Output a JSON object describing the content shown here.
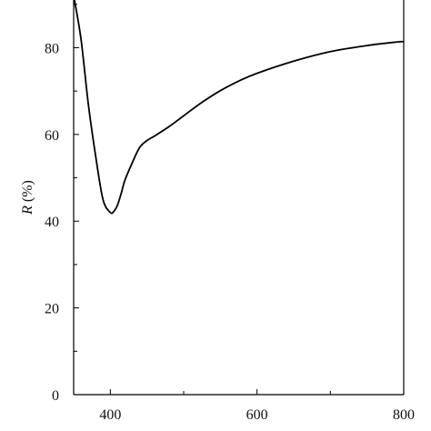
{
  "chart_data": {
    "type": "line",
    "title": "",
    "xlabel": "",
    "ylabel_italic": "R",
    "ylabel_rest": " (%)",
    "xlim": [
      350,
      800
    ],
    "ylim": [
      0,
      91
    ],
    "x_ticks_major": [
      400,
      600,
      800
    ],
    "x_ticks_minor": [
      500,
      700
    ],
    "x_tick_labels": [
      "400",
      "600",
      "800"
    ],
    "y_ticks_major": [
      0,
      20,
      40,
      60,
      80
    ],
    "y_ticks_minor": [
      10,
      30,
      50,
      70,
      90
    ],
    "y_tick_labels": [
      "0",
      "20",
      "40",
      "60",
      "80"
    ],
    "grid": false,
    "line_color": "#000000",
    "series": [
      {
        "x": [
          350,
          360,
          370,
          380,
          390,
          400,
          405,
          410,
          415,
          420,
          430,
          440,
          450,
          460,
          480,
          500,
          525,
          550,
          575,
          600,
          650,
          700,
          750,
          790,
          800
        ],
        "y": [
          92,
          82,
          67,
          55,
          45,
          42,
          42.3,
          43.8,
          46.5,
          49.5,
          53.5,
          57,
          58.6,
          59.6,
          61.8,
          64.3,
          67.4,
          70.1,
          72.3,
          74.1,
          76.9,
          79.1,
          80.5,
          81.3,
          81.4
        ]
      }
    ]
  }
}
